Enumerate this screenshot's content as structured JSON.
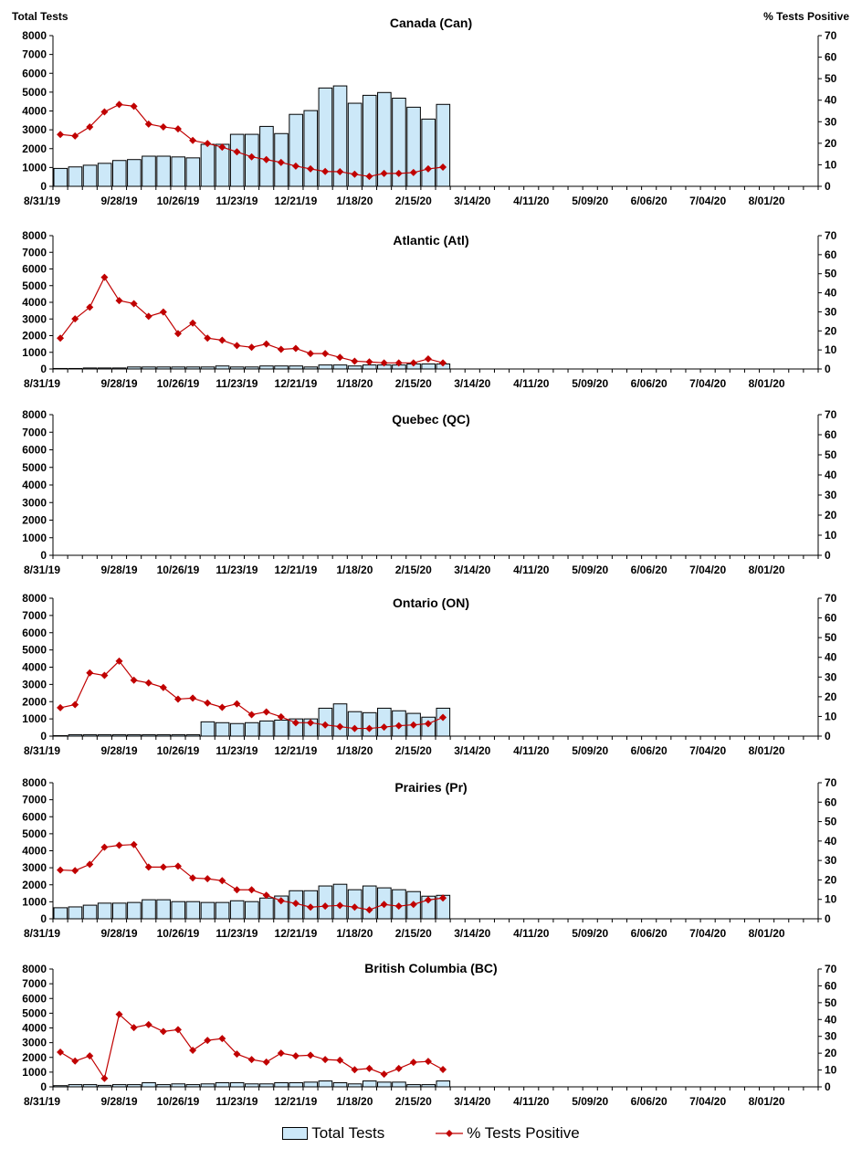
{
  "colors": {
    "bar_fill": "#cce8f8",
    "bar_stroke": "#000000",
    "line": "#c00000"
  },
  "chart_data": {
    "left_axis_label": "Total Tests",
    "right_axis_label": "% Tests Positive",
    "legend": {
      "bars": "Total Tests",
      "line": "% Tests Positive",
      "position": "bottom"
    },
    "x_tick_labels": [
      "8/31/19",
      "9/28/19",
      "10/26/19",
      "11/23/19",
      "12/21/19",
      "1/18/20",
      "2/15/20",
      "3/14/20",
      "4/11/20",
      "5/09/20",
      "6/06/20",
      "7/04/20",
      "8/01/20"
    ],
    "ylim_left": [
      0,
      8000
    ],
    "ylim_right": [
      0,
      70
    ],
    "charts": [
      {
        "type": "bar+line",
        "title": "Canada (Can)",
        "total_tests": [
          950,
          1030,
          1120,
          1220,
          1370,
          1420,
          1600,
          1600,
          1560,
          1510,
          2230,
          2230,
          2760,
          2760,
          3180,
          2800,
          3820,
          4020,
          5220,
          5330,
          4410,
          4830,
          4980,
          4680,
          4200,
          3570,
          4350
        ],
        "pct_positive": [
          24.1,
          23.4,
          27.6,
          34.6,
          38.0,
          37.2,
          28.9,
          27.6,
          26.7,
          21.3,
          19.9,
          18.2,
          16.0,
          13.7,
          12.4,
          11.1,
          9.4,
          8.1,
          6.9,
          6.8,
          5.6,
          4.6,
          6.0,
          6.0,
          6.4,
          8.1,
          8.9
        ]
      },
      {
        "type": "bar+line",
        "title": "Atlantic (Atl)",
        "total_tests": [
          30,
          30,
          60,
          60,
          60,
          120,
          120,
          120,
          120,
          120,
          120,
          180,
          120,
          120,
          180,
          180,
          180,
          120,
          240,
          240,
          180,
          240,
          240,
          240,
          300,
          300,
          300
        ],
        "pct_positive": [
          16.2,
          26.3,
          32.4,
          48.1,
          35.9,
          34.3,
          27.6,
          29.9,
          18.6,
          24.1,
          16.2,
          15.1,
          12.3,
          11.4,
          13.1,
          10.3,
          10.8,
          8.1,
          8.1,
          6.1,
          4.1,
          3.7,
          3.2,
          3.2,
          3.2,
          5.3,
          3.2
        ]
      },
      {
        "type": "bar+line",
        "title": "Quebec (QC)",
        "total_tests": [],
        "pct_positive": []
      },
      {
        "type": "bar+line",
        "title": "Ontario (ON)",
        "total_tests": [
          30,
          80,
          80,
          80,
          80,
          80,
          80,
          80,
          80,
          80,
          830,
          780,
          730,
          780,
          880,
          930,
          1000,
          1000,
          1620,
          1870,
          1420,
          1360,
          1620,
          1470,
          1320,
          1100,
          1620
        ],
        "pct_positive": [
          14.4,
          16.0,
          32.1,
          30.8,
          38.1,
          28.4,
          27.0,
          24.7,
          18.8,
          19.3,
          16.8,
          14.6,
          16.4,
          10.9,
          12.3,
          9.8,
          6.8,
          6.8,
          5.7,
          4.8,
          3.9,
          3.9,
          4.6,
          5.3,
          5.7,
          6.3,
          9.5
        ]
      },
      {
        "type": "bar+line",
        "title": "Prairies (Pr)",
        "total_tests": [
          650,
          700,
          800,
          920,
          920,
          960,
          1120,
          1120,
          1010,
          1010,
          960,
          960,
          1060,
          1010,
          1220,
          1340,
          1650,
          1650,
          1930,
          2030,
          1710,
          1930,
          1820,
          1710,
          1600,
          1330,
          1380
        ],
        "pct_positive": [
          25.1,
          24.8,
          28.0,
          36.8,
          37.8,
          38.2,
          26.6,
          26.6,
          27.1,
          21.0,
          20.6,
          19.6,
          14.9,
          14.9,
          12.1,
          9.3,
          7.9,
          6.0,
          6.5,
          6.9,
          6.0,
          4.6,
          7.4,
          6.5,
          7.4,
          9.7,
          10.7
        ]
      },
      {
        "type": "bar+line",
        "title": "British Columbia (BC)",
        "total_tests": [
          80,
          150,
          150,
          100,
          150,
          150,
          280,
          150,
          200,
          150,
          200,
          280,
          280,
          200,
          200,
          280,
          280,
          320,
          400,
          280,
          200,
          400,
          320,
          320,
          150,
          150,
          400
        ],
        "pct_positive": [
          20.6,
          15.3,
          18.4,
          5.0,
          43.1,
          35.2,
          37.0,
          32.9,
          34.0,
          21.7,
          27.6,
          28.7,
          19.5,
          16.2,
          14.7,
          20.0,
          18.4,
          18.8,
          16.2,
          15.8,
          10.2,
          10.9,
          7.5,
          10.9,
          14.6,
          15.1,
          10.3
        ]
      }
    ]
  }
}
